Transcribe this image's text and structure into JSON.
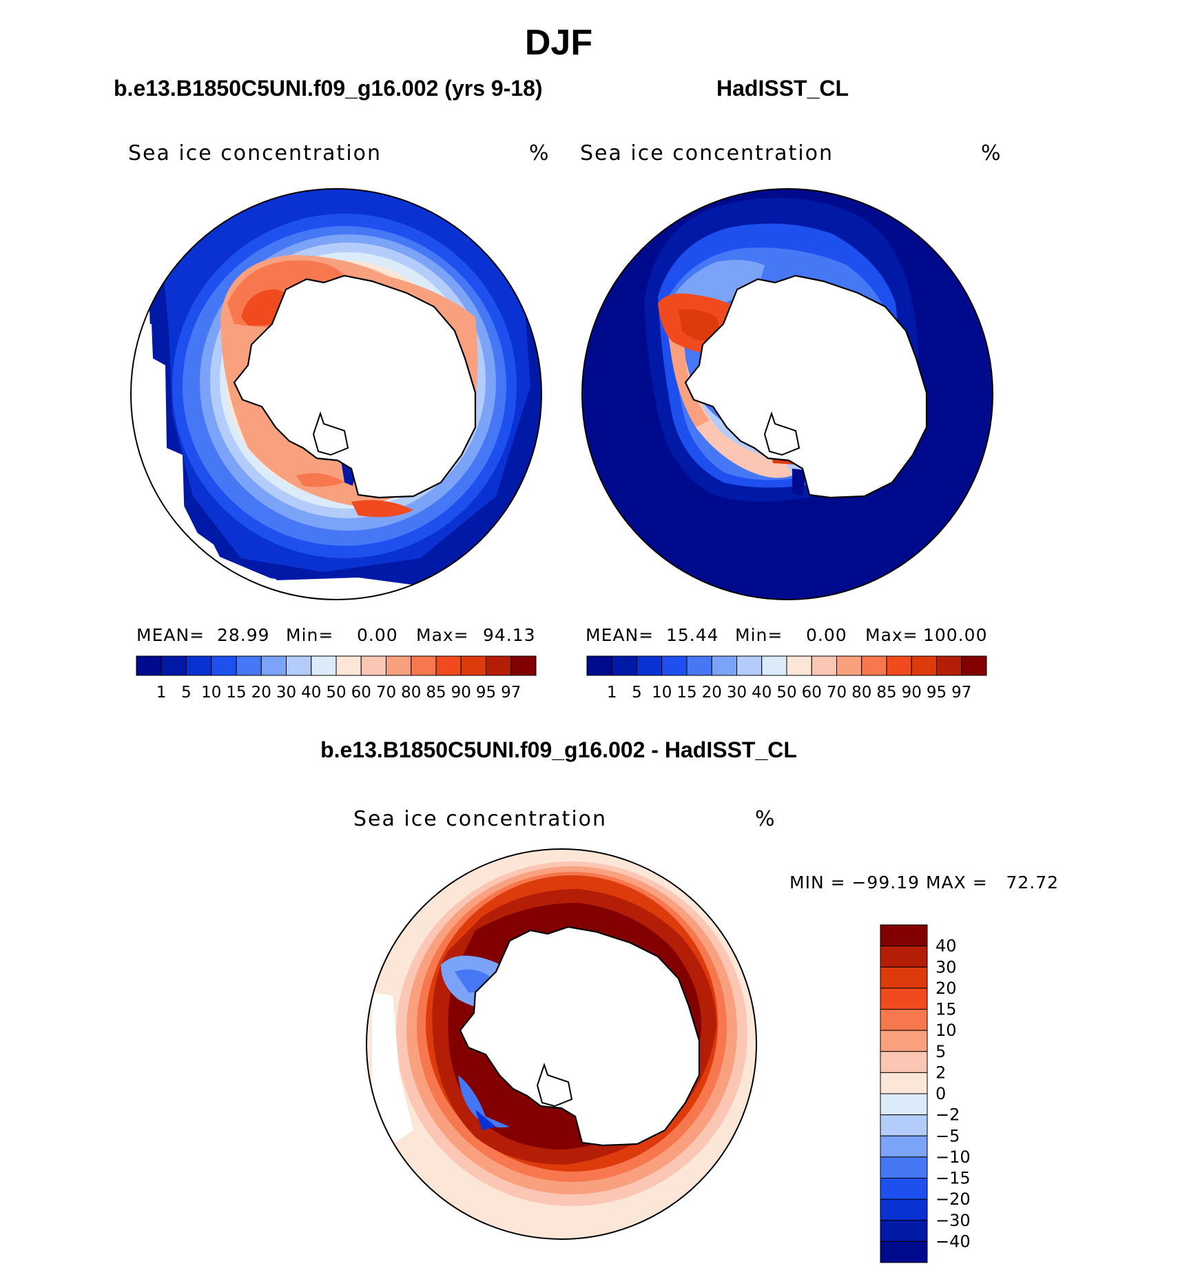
{
  "figure": {
    "title": "DJF",
    "diff_panel_title": "b.e13.B1850C5UNI.f09_g16.002 - HadISST_CL"
  },
  "panels": [
    {
      "title": "b.e13.B1850C5UNI.f09_g16.002 (yrs 9-18)",
      "field_label": "Sea ice concentration",
      "units": "%",
      "stats": {
        "mean_label": "MEAN=",
        "mean": "28.99",
        "min_label": "Min=",
        "min": "0.00",
        "max_label": "Max=",
        "max": "94.13"
      }
    },
    {
      "title": "HadISST_CL",
      "field_label": "Sea ice concentration",
      "units": "%",
      "stats": {
        "mean_label": "MEAN=",
        "mean": "15.44",
        "min_label": "Min=",
        "min": "0.00",
        "max_label": "Max=",
        "max": "100.00"
      }
    }
  ],
  "diff_panel": {
    "field_label": "Sea ice concentration",
    "units": "%",
    "minmax_text": "MIN = −99.19 MAX =   72.72"
  },
  "concentration_colorbar": {
    "ticks": [
      "1",
      "5",
      "10",
      "15",
      "20",
      "30",
      "40",
      "50",
      "60",
      "70",
      "80",
      "85",
      "90",
      "95",
      "97"
    ],
    "colors": [
      "#000a8c",
      "#0019a6",
      "#0a32d2",
      "#1e50f0",
      "#4678f5",
      "#7ba3f7",
      "#b4ccf9",
      "#dcebfa",
      "#fce6d8",
      "#fbc7b4",
      "#f9a07e",
      "#f7784f",
      "#f04a1e",
      "#dd3b0c",
      "#b51e06",
      "#820000"
    ]
  },
  "difference_colorbar": {
    "ticks": [
      "40",
      "30",
      "20",
      "15",
      "10",
      "5",
      "2",
      "0",
      "−2",
      "−5",
      "−10",
      "−15",
      "−20",
      "−30",
      "−40"
    ],
    "colors": [
      "#820000",
      "#b51e06",
      "#dd3b0c",
      "#f04a1e",
      "#f7784f",
      "#f9a07e",
      "#fbc7b4",
      "#fce6d8",
      "#dcebfa",
      "#b4ccf9",
      "#7ba3f7",
      "#4678f5",
      "#1e50f0",
      "#0a32d2",
      "#0019a6",
      "#000a8c"
    ]
  }
}
